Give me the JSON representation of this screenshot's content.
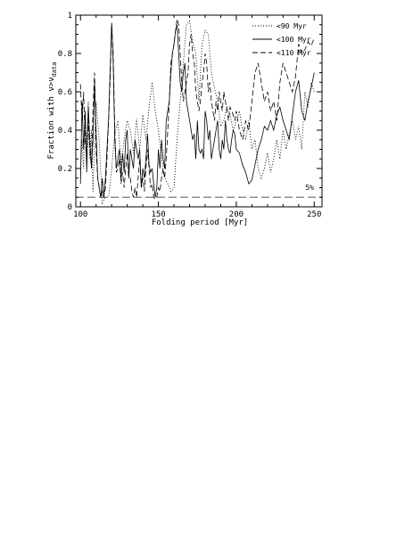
{
  "chart_data": {
    "type": "line",
    "title": "",
    "xlabel": "Folding period [Myr]",
    "ylabel_main": "Fraction with ν>ν",
    "ylabel_sub": "data",
    "xlim": [
      97,
      255
    ],
    "ylim": [
      0,
      1
    ],
    "xticks": [
      100,
      150,
      200,
      250
    ],
    "yticks": [
      0,
      0.2,
      0.4,
      0.6,
      0.8,
      1
    ],
    "ytick_labels": [
      "0",
      "0.2",
      "0.4",
      "0.6",
      "0.8",
      "1"
    ],
    "legend_position": "top-right",
    "threshold": {
      "value": 0.05,
      "label": "5%"
    },
    "series": [
      {
        "name": "<90 Myr",
        "style": "dotted",
        "x": [
          100,
          101,
          102,
          103,
          104,
          105,
          106,
          107,
          108,
          110,
          112,
          114,
          116,
          118,
          120,
          122,
          124,
          126,
          128,
          130,
          132,
          134,
          136,
          138,
          140,
          142,
          144,
          146,
          148,
          150,
          152,
          154,
          156,
          158,
          160,
          162,
          164,
          166,
          168,
          170,
          172,
          174,
          176,
          178,
          180,
          182,
          184,
          186,
          188,
          190,
          192,
          194,
          196,
          198,
          200,
          202,
          204,
          206,
          208,
          210,
          212,
          214,
          216,
          218,
          220,
          222,
          224,
          226,
          228,
          230,
          232,
          234,
          236,
          238,
          240,
          242,
          244,
          246,
          248,
          250
        ],
        "values": [
          0.15,
          0.35,
          0.2,
          0.48,
          0.3,
          0.55,
          0.25,
          0.4,
          0.08,
          0.55,
          0.35,
          0.02,
          0.05,
          0.05,
          0.2,
          0.38,
          0.45,
          0.22,
          0.35,
          0.45,
          0.4,
          0.28,
          0.46,
          0.3,
          0.48,
          0.35,
          0.52,
          0.65,
          0.5,
          0.4,
          0.25,
          0.15,
          0.12,
          0.08,
          0.1,
          0.35,
          0.55,
          0.75,
          0.95,
          0.97,
          0.86,
          0.8,
          0.55,
          0.85,
          0.92,
          0.9,
          0.7,
          0.62,
          0.55,
          0.42,
          0.45,
          0.52,
          0.48,
          0.4,
          0.45,
          0.5,
          0.4,
          0.35,
          0.45,
          0.3,
          0.35,
          0.2,
          0.15,
          0.2,
          0.28,
          0.18,
          0.25,
          0.35,
          0.25,
          0.4,
          0.3,
          0.38,
          0.45,
          0.35,
          0.42,
          0.3,
          0.6,
          0.52,
          0.65,
          0.6
        ]
      },
      {
        "name": "<100 Myr",
        "style": "solid",
        "x": [
          100,
          101,
          102,
          103,
          104,
          105,
          106,
          107,
          108,
          109,
          110,
          111,
          112,
          113,
          114,
          115,
          116,
          117,
          118,
          119,
          120,
          121,
          122,
          123,
          124,
          125,
          126,
          127,
          128,
          129,
          130,
          131,
          132,
          133,
          134,
          135,
          136,
          137,
          138,
          139,
          140,
          141,
          142,
          143,
          144,
          145,
          146,
          147,
          148,
          149,
          150,
          151,
          152,
          153,
          154,
          155,
          156,
          157,
          158,
          159,
          160,
          161,
          162,
          163,
          164,
          165,
          166,
          167,
          168,
          169,
          170,
          171,
          172,
          173,
          174,
          175,
          176,
          177,
          178,
          179,
          180,
          181,
          182,
          183,
          184,
          185,
          186,
          187,
          188,
          189,
          190,
          191,
          192,
          193,
          194,
          195,
          196,
          197,
          198,
          199,
          200,
          202,
          204,
          206,
          208,
          210,
          212,
          214,
          216,
          218,
          220,
          222,
          224,
          226,
          228,
          230,
          232,
          234,
          236,
          238,
          240,
          242,
          244,
          246,
          248,
          250
        ],
        "values": [
          0.12,
          0.55,
          0.3,
          0.5,
          0.18,
          0.52,
          0.35,
          0.2,
          0.35,
          0.65,
          0.4,
          0.15,
          0.1,
          0.05,
          0.15,
          0.05,
          0.15,
          0.3,
          0.45,
          0.7,
          0.96,
          0.75,
          0.35,
          0.2,
          0.25,
          0.3,
          0.15,
          0.28,
          0.18,
          0.35,
          0.4,
          0.15,
          0.3,
          0.25,
          0.2,
          0.35,
          0.3,
          0.25,
          0.3,
          0.1,
          0.2,
          0.15,
          0.25,
          0.38,
          0.22,
          0.18,
          0.2,
          0.12,
          0.05,
          0.1,
          0.3,
          0.2,
          0.35,
          0.25,
          0.2,
          0.45,
          0.5,
          0.55,
          0.7,
          0.8,
          0.85,
          0.92,
          0.95,
          0.8,
          0.65,
          0.6,
          0.7,
          0.75,
          0.55,
          0.5,
          0.45,
          0.4,
          0.35,
          0.38,
          0.25,
          0.45,
          0.3,
          0.28,
          0.3,
          0.25,
          0.5,
          0.45,
          0.35,
          0.4,
          0.25,
          0.3,
          0.35,
          0.4,
          0.45,
          0.3,
          0.25,
          0.35,
          0.3,
          0.45,
          0.35,
          0.3,
          0.28,
          0.35,
          0.4,
          0.38,
          0.3,
          0.28,
          0.22,
          0.18,
          0.12,
          0.14,
          0.22,
          0.3,
          0.35,
          0.42,
          0.4,
          0.45,
          0.4,
          0.48,
          0.52,
          0.45,
          0.4,
          0.35,
          0.48,
          0.6,
          0.66,
          0.5,
          0.45,
          0.55,
          0.62,
          0.7
        ]
      },
      {
        "name": "<110 Myr",
        "style": "dashed",
        "x": [
          100,
          101,
          102,
          103,
          104,
          105,
          106,
          107,
          108,
          109,
          110,
          111,
          112,
          113,
          114,
          115,
          116,
          117,
          118,
          119,
          120,
          121,
          122,
          123,
          124,
          125,
          126,
          127,
          128,
          129,
          130,
          131,
          132,
          133,
          134,
          135,
          136,
          137,
          138,
          139,
          140,
          141,
          142,
          143,
          144,
          145,
          146,
          147,
          148,
          149,
          150,
          151,
          152,
          153,
          154,
          155,
          156,
          157,
          158,
          159,
          160,
          161,
          162,
          163,
          164,
          165,
          166,
          167,
          168,
          169,
          170,
          171,
          172,
          173,
          174,
          175,
          176,
          177,
          178,
          179,
          180,
          181,
          182,
          183,
          184,
          185,
          186,
          187,
          188,
          189,
          190,
          191,
          192,
          193,
          194,
          195,
          196,
          197,
          198,
          199,
          200,
          202,
          204,
          206,
          208,
          210,
          212,
          214,
          216,
          218,
          220,
          222,
          224,
          226,
          228,
          230,
          232,
          234,
          236,
          238,
          240,
          242,
          244,
          246,
          248,
          250
        ],
        "values": [
          0.64,
          0.45,
          0.6,
          0.35,
          0.25,
          0.45,
          0.3,
          0.2,
          0.5,
          0.7,
          0.3,
          0.15,
          0.1,
          0.05,
          0.08,
          0.05,
          0.1,
          0.25,
          0.45,
          0.65,
          0.95,
          0.8,
          0.4,
          0.18,
          0.2,
          0.25,
          0.12,
          0.18,
          0.1,
          0.2,
          0.28,
          0.15,
          0.15,
          0.08,
          0.05,
          0.1,
          0.05,
          0.15,
          0.25,
          0.1,
          0.15,
          0.08,
          0.2,
          0.3,
          0.2,
          0.1,
          0.12,
          0.05,
          0.04,
          0.05,
          0.1,
          0.08,
          0.15,
          0.2,
          0.15,
          0.25,
          0.4,
          0.55,
          0.75,
          0.8,
          0.85,
          0.92,
          0.98,
          0.95,
          0.8,
          0.65,
          0.55,
          0.6,
          0.65,
          0.7,
          0.85,
          0.9,
          0.8,
          0.75,
          0.6,
          0.55,
          0.5,
          0.55,
          0.65,
          0.7,
          0.8,
          0.75,
          0.6,
          0.65,
          0.55,
          0.5,
          0.45,
          0.55,
          0.5,
          0.6,
          0.55,
          0.5,
          0.6,
          0.55,
          0.5,
          0.45,
          0.52,
          0.5,
          0.48,
          0.45,
          0.5,
          0.4,
          0.35,
          0.45,
          0.4,
          0.55,
          0.7,
          0.75,
          0.65,
          0.55,
          0.6,
          0.5,
          0.55,
          0.45,
          0.65,
          0.75,
          0.7,
          0.65,
          0.6,
          0.68,
          0.85,
          0.8,
          0.82,
          0.86,
          0.84,
          0.88
        ]
      }
    ]
  }
}
